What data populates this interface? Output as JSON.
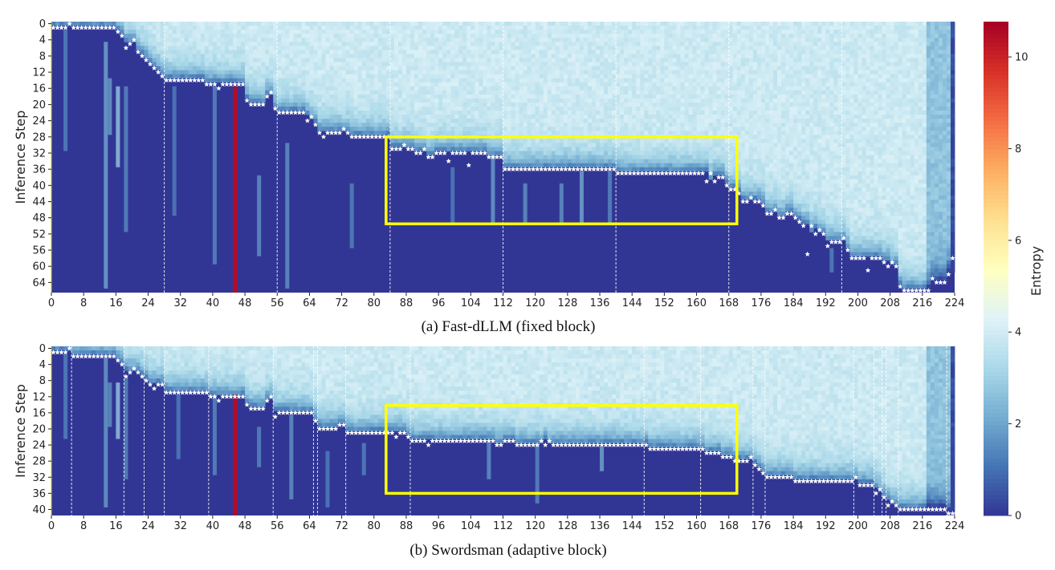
{
  "chart_data": {
    "type": "heatmap",
    "colorbar": {
      "label": "Entropy",
      "vmin": 0,
      "vmax": 10.77,
      "ticks": [
        0,
        2,
        4,
        6,
        8,
        10
      ],
      "colormap": "RdYlBu_r"
    },
    "highlight_color": "#ffff00",
    "panels": [
      {
        "caption": "(a) Fast-dLLM (fixed block)",
        "ylabel": "Inference Step",
        "x_range": [
          0,
          224
        ],
        "y_range": [
          0,
          66
        ],
        "x_ticks": [
          0,
          8,
          16,
          24,
          32,
          40,
          48,
          56,
          64,
          72,
          80,
          88,
          96,
          104,
          112,
          120,
          128,
          136,
          144,
          152,
          160,
          168,
          176,
          184,
          192,
          200,
          208,
          216,
          224
        ],
        "y_ticks": [
          0,
          4,
          8,
          12,
          16,
          20,
          24,
          28,
          32,
          36,
          40,
          44,
          48,
          52,
          56,
          60,
          64
        ],
        "block_boundaries": [
          28,
          56,
          84,
          112,
          140,
          168,
          196
        ],
        "highlight_box": {
          "x": [
            83,
            170
          ],
          "y": [
            28.5,
            50
          ]
        },
        "high_entropy_column": {
          "col": 45,
          "from_step": 16,
          "entropy": 10.5
        },
        "decode_step_per_token": [
          [
            0,
            3,
            1
          ],
          [
            4,
            4,
            0
          ],
          [
            5,
            15,
            1
          ],
          [
            16,
            16,
            2
          ],
          [
            17,
            17,
            3
          ],
          [
            18,
            18,
            6
          ],
          [
            19,
            19,
            5
          ],
          [
            20,
            20,
            4
          ],
          [
            21,
            21,
            7
          ],
          [
            22,
            22,
            8
          ],
          [
            23,
            23,
            9
          ],
          [
            24,
            24,
            10
          ],
          [
            25,
            25,
            11
          ],
          [
            26,
            26,
            12
          ],
          [
            27,
            27,
            13
          ],
          [
            28,
            37,
            14
          ],
          [
            38,
            40,
            15
          ],
          [
            41,
            41,
            16
          ],
          [
            42,
            47,
            15
          ],
          [
            48,
            48,
            19
          ],
          [
            49,
            52,
            20
          ],
          [
            53,
            53,
            18
          ],
          [
            54,
            54,
            17
          ],
          [
            55,
            55,
            21
          ],
          [
            56,
            62,
            22
          ],
          [
            63,
            63,
            24
          ],
          [
            64,
            64,
            23
          ],
          [
            65,
            65,
            25
          ],
          [
            66,
            66,
            27
          ],
          [
            67,
            67,
            28
          ],
          [
            68,
            71,
            27
          ],
          [
            72,
            72,
            26
          ],
          [
            73,
            73,
            27
          ],
          [
            74,
            83,
            28
          ],
          [
            84,
            86,
            31
          ],
          [
            87,
            87,
            30
          ],
          [
            88,
            89,
            31
          ],
          [
            90,
            91,
            32
          ],
          [
            92,
            92,
            31
          ],
          [
            93,
            94,
            33
          ],
          [
            95,
            97,
            32
          ],
          [
            98,
            98,
            34
          ],
          [
            99,
            102,
            32
          ],
          [
            103,
            103,
            35
          ],
          [
            104,
            107,
            32
          ],
          [
            108,
            111,
            33
          ],
          [
            112,
            139,
            36
          ],
          [
            140,
            161,
            37
          ],
          [
            162,
            162,
            39
          ],
          [
            163,
            163,
            37
          ],
          [
            164,
            164,
            39
          ],
          [
            165,
            166,
            38
          ],
          [
            167,
            167,
            40
          ],
          [
            168,
            169,
            41
          ],
          [
            170,
            170,
            42
          ],
          [
            171,
            172,
            44
          ],
          [
            173,
            173,
            43
          ],
          [
            174,
            175,
            44
          ],
          [
            176,
            176,
            45
          ],
          [
            177,
            178,
            47
          ],
          [
            179,
            179,
            46
          ],
          [
            180,
            181,
            48
          ],
          [
            182,
            183,
            47
          ],
          [
            184,
            184,
            48
          ],
          [
            185,
            185,
            49
          ],
          [
            186,
            186,
            50
          ],
          [
            187,
            187,
            57
          ],
          [
            188,
            188,
            50
          ],
          [
            189,
            189,
            52
          ],
          [
            190,
            190,
            51
          ],
          [
            191,
            191,
            52
          ],
          [
            192,
            192,
            55
          ],
          [
            193,
            195,
            54
          ],
          [
            196,
            196,
            53
          ],
          [
            197,
            197,
            56
          ],
          [
            198,
            201,
            58
          ],
          [
            202,
            202,
            61
          ],
          [
            203,
            205,
            58
          ],
          [
            206,
            206,
            59
          ],
          [
            207,
            207,
            60
          ],
          [
            208,
            208,
            59
          ],
          [
            209,
            209,
            60
          ],
          [
            210,
            210,
            65
          ],
          [
            211,
            217,
            66
          ],
          [
            218,
            218,
            63
          ],
          [
            219,
            221,
            64
          ],
          [
            222,
            222,
            62
          ],
          [
            223,
            223,
            58
          ]
        ],
        "streaks": [
          [
            3,
            2,
            32,
            1.5
          ],
          [
            13,
            5,
            66,
            2.2
          ],
          [
            14,
            14,
            28,
            2.0
          ],
          [
            16,
            16,
            36,
            3.0
          ],
          [
            18,
            16,
            52,
            1.6
          ],
          [
            30,
            16,
            48,
            1.4
          ],
          [
            40,
            16,
            60,
            1.6
          ],
          [
            51,
            38,
            58,
            1.8
          ],
          [
            58,
            30,
            66,
            1.8
          ],
          [
            74,
            40,
            56,
            1.5
          ],
          [
            99,
            36,
            50,
            1.4
          ],
          [
            109,
            33,
            50,
            2.0
          ],
          [
            117,
            40,
            50,
            1.8
          ],
          [
            126,
            40,
            50,
            1.8
          ],
          [
            131,
            37,
            50,
            2.2
          ],
          [
            138,
            37,
            50,
            1.6
          ],
          [
            193,
            56,
            62,
            1.5
          ]
        ]
      },
      {
        "caption": "(b) Swordsman (adaptive block)",
        "ylabel": "Inference Step",
        "x_range": [
          0,
          224
        ],
        "y_range": [
          0,
          41
        ],
        "x_ticks": [
          0,
          8,
          16,
          24,
          32,
          40,
          48,
          56,
          64,
          72,
          80,
          88,
          96,
          104,
          112,
          120,
          128,
          136,
          144,
          152,
          160,
          168,
          176,
          184,
          192,
          200,
          208,
          216,
          224
        ],
        "y_ticks": [
          0,
          4,
          8,
          12,
          16,
          20,
          24,
          28,
          32,
          36,
          40
        ],
        "block_boundaries": [
          5,
          18,
          23,
          28,
          39,
          55,
          65,
          66,
          73,
          89,
          147,
          161,
          174,
          177,
          199,
          204,
          206,
          207,
          210,
          222
        ],
        "highlight_box": {
          "x": [
            83,
            170
          ],
          "y": [
            14.7,
            36.5
          ]
        },
        "high_entropy_column": {
          "col": 45,
          "from_step": 12,
          "entropy": 10.5
        },
        "decode_step_per_token": [
          [
            0,
            3,
            1
          ],
          [
            4,
            4,
            0
          ],
          [
            5,
            15,
            2
          ],
          [
            16,
            16,
            3
          ],
          [
            17,
            17,
            4
          ],
          [
            18,
            18,
            7
          ],
          [
            19,
            19,
            6
          ],
          [
            20,
            20,
            5
          ],
          [
            21,
            21,
            6
          ],
          [
            22,
            22,
            7
          ],
          [
            23,
            23,
            8
          ],
          [
            24,
            24,
            9
          ],
          [
            25,
            25,
            10
          ],
          [
            26,
            27,
            9
          ],
          [
            28,
            38,
            11
          ],
          [
            39,
            40,
            12
          ],
          [
            41,
            41,
            13
          ],
          [
            42,
            47,
            12
          ],
          [
            48,
            48,
            14
          ],
          [
            49,
            52,
            15
          ],
          [
            53,
            53,
            13
          ],
          [
            54,
            54,
            12
          ],
          [
            55,
            55,
            17
          ],
          [
            56,
            64,
            16
          ],
          [
            65,
            65,
            18
          ],
          [
            66,
            70,
            20
          ],
          [
            71,
            72,
            19
          ],
          [
            73,
            84,
            21
          ],
          [
            85,
            85,
            22
          ],
          [
            86,
            87,
            21
          ],
          [
            88,
            88,
            22
          ],
          [
            89,
            92,
            23
          ],
          [
            93,
            93,
            24
          ],
          [
            94,
            109,
            23
          ],
          [
            110,
            111,
            24
          ],
          [
            112,
            114,
            23
          ],
          [
            115,
            120,
            24
          ],
          [
            121,
            121,
            23
          ],
          [
            122,
            122,
            24
          ],
          [
            123,
            123,
            23
          ],
          [
            124,
            147,
            24
          ],
          [
            148,
            161,
            25
          ],
          [
            162,
            165,
            26
          ],
          [
            166,
            168,
            27
          ],
          [
            169,
            172,
            28
          ],
          [
            173,
            173,
            27
          ],
          [
            174,
            174,
            29
          ],
          [
            175,
            175,
            30
          ],
          [
            176,
            176,
            31
          ],
          [
            177,
            183,
            32
          ],
          [
            184,
            198,
            33
          ],
          [
            199,
            199,
            32
          ],
          [
            200,
            203,
            34
          ],
          [
            204,
            204,
            36
          ],
          [
            205,
            205,
            35
          ],
          [
            206,
            206,
            37
          ],
          [
            207,
            207,
            39
          ],
          [
            208,
            208,
            38
          ],
          [
            209,
            209,
            39
          ],
          [
            210,
            221,
            40
          ],
          [
            222,
            223,
            41
          ]
        ],
        "streaks": [
          [
            3,
            2,
            23,
            1.5
          ],
          [
            13,
            3,
            40,
            2.0
          ],
          [
            14,
            9,
            20,
            1.8
          ],
          [
            16,
            9,
            23,
            3.0
          ],
          [
            18,
            8,
            33,
            1.6
          ],
          [
            31,
            12,
            28,
            1.4
          ],
          [
            40,
            12,
            32,
            1.6
          ],
          [
            51,
            20,
            30,
            1.6
          ],
          [
            59,
            17,
            38,
            1.8
          ],
          [
            68,
            26,
            40,
            1.4
          ],
          [
            77,
            24,
            32,
            1.5
          ],
          [
            108,
            24,
            33,
            1.8
          ],
          [
            120,
            24,
            39,
            1.6
          ],
          [
            136,
            25,
            31,
            2.2
          ]
        ]
      }
    ]
  }
}
